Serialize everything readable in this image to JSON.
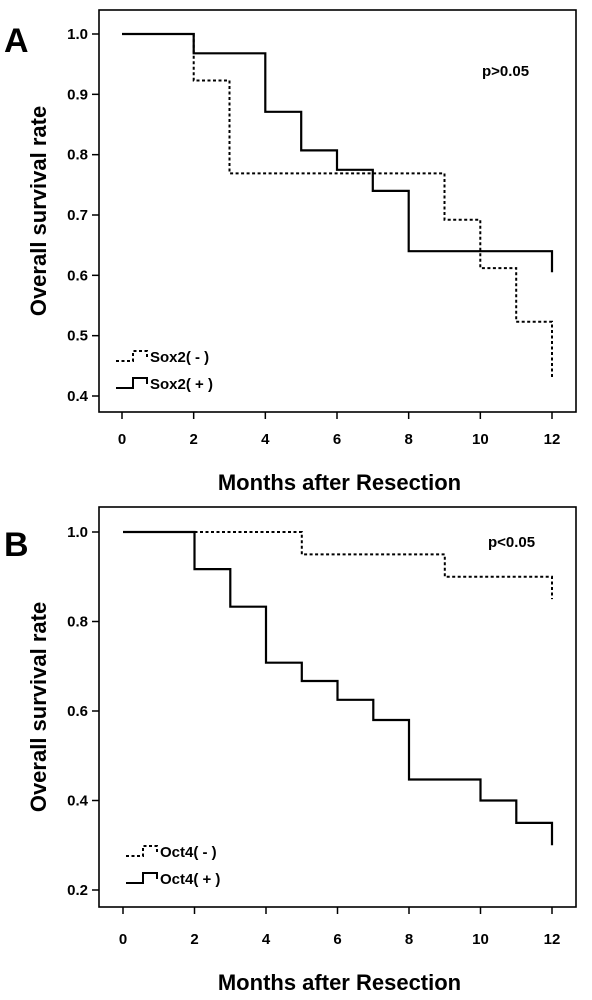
{
  "chart_data": [
    {
      "panel": "A",
      "type": "line",
      "step": true,
      "xlabel": "Months after Resection",
      "ylabel": "Overall survival rate",
      "xlim": [
        0,
        12
      ],
      "ylim": [
        0.4,
        1.0
      ],
      "xticks": [
        "0",
        "2",
        "4",
        "6",
        "8",
        "10",
        "12"
      ],
      "yticks": [
        "0.4",
        "0.5",
        "0.6",
        "0.7",
        "0.8",
        "0.9",
        "1.0"
      ],
      "annotation": "p>0.05",
      "legend_position": "bottom-left",
      "grid": false,
      "series": [
        {
          "name": "Sox2( - )",
          "style": "dashed",
          "points": [
            [
              0,
              1.0
            ],
            [
              2,
              1.0
            ],
            [
              2,
              0.923
            ],
            [
              3,
              0.923
            ],
            [
              3,
              0.769
            ],
            [
              9,
              0.769
            ],
            [
              9,
              0.692
            ],
            [
              10,
              0.692
            ],
            [
              10,
              0.612
            ],
            [
              11,
              0.612
            ],
            [
              11,
              0.523
            ],
            [
              12,
              0.523
            ],
            [
              12,
              0.43
            ]
          ]
        },
        {
          "name": "Sox2( + )",
          "style": "solid",
          "points": [
            [
              0,
              1.0
            ],
            [
              2,
              1.0
            ],
            [
              2,
              0.968
            ],
            [
              4,
              0.968
            ],
            [
              4,
              0.871
            ],
            [
              5,
              0.871
            ],
            [
              5,
              0.807
            ],
            [
              6,
              0.807
            ],
            [
              6,
              0.775
            ],
            [
              7,
              0.775
            ],
            [
              7,
              0.74
            ],
            [
              8,
              0.74
            ],
            [
              8,
              0.64
            ],
            [
              12,
              0.64
            ],
            [
              12,
              0.605
            ]
          ]
        }
      ]
    },
    {
      "panel": "B",
      "type": "line",
      "step": true,
      "xlabel": "Months after Resection",
      "ylabel": "Overall survival rate",
      "xlim": [
        0,
        12
      ],
      "ylim": [
        0.2,
        1.0
      ],
      "xticks": [
        "0",
        "2",
        "4",
        "6",
        "8",
        "10",
        "12"
      ],
      "yticks": [
        "0.2",
        "0.4",
        "0.6",
        "0.8",
        "1.0"
      ],
      "annotation": "p<0.05",
      "legend_position": "bottom-left",
      "grid": false,
      "series": [
        {
          "name": "Oct4( - )",
          "style": "dashed",
          "points": [
            [
              0,
              1.0
            ],
            [
              5,
              1.0
            ],
            [
              5,
              0.95
            ],
            [
              9,
              0.95
            ],
            [
              9,
              0.9
            ],
            [
              12,
              0.9
            ],
            [
              12,
              0.85
            ]
          ]
        },
        {
          "name": "Oct4( + )",
          "style": "solid",
          "points": [
            [
              0,
              1.0
            ],
            [
              2,
              1.0
            ],
            [
              2,
              0.917
            ],
            [
              3,
              0.917
            ],
            [
              3,
              0.833
            ],
            [
              4,
              0.833
            ],
            [
              4,
              0.708
            ],
            [
              5,
              0.708
            ],
            [
              5,
              0.667
            ],
            [
              6,
              0.667
            ],
            [
              6,
              0.625
            ],
            [
              7,
              0.625
            ],
            [
              7,
              0.58
            ],
            [
              8,
              0.58
            ],
            [
              8,
              0.447
            ],
            [
              10,
              0.447
            ],
            [
              10,
              0.4
            ],
            [
              11,
              0.4
            ],
            [
              11,
              0.35
            ],
            [
              12,
              0.35
            ],
            [
              12,
              0.3
            ]
          ]
        }
      ]
    }
  ]
}
